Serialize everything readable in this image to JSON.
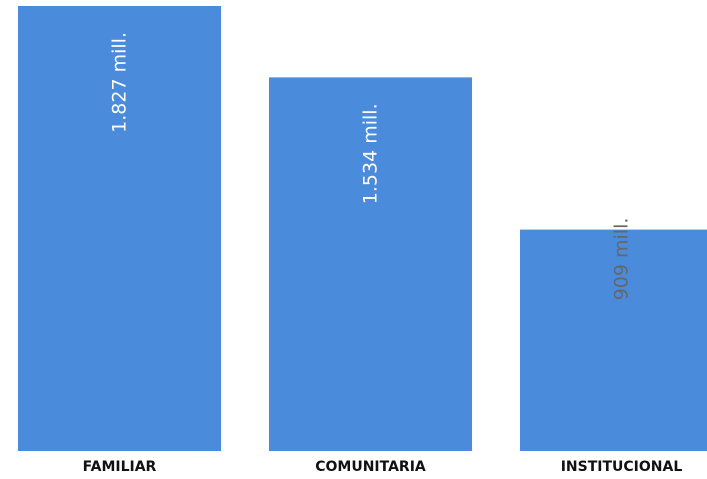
{
  "chart_data": {
    "type": "bar",
    "orientation": "vertical",
    "categories": [
      "FAMILIAR",
      "COMUNITARIA",
      "INSTITUCIONAL"
    ],
    "values": [
      1827,
      1534,
      909
    ],
    "value_labels": [
      "1.827 mill.",
      "1.534 mill.",
      "909 mill."
    ],
    "ylim": [
      0,
      1827
    ],
    "grid": false,
    "colors": {
      "bar": "#4A8CDB",
      "label_inside": "#ffffff",
      "label_outside": "#666666",
      "category_text": "#111111"
    }
  }
}
